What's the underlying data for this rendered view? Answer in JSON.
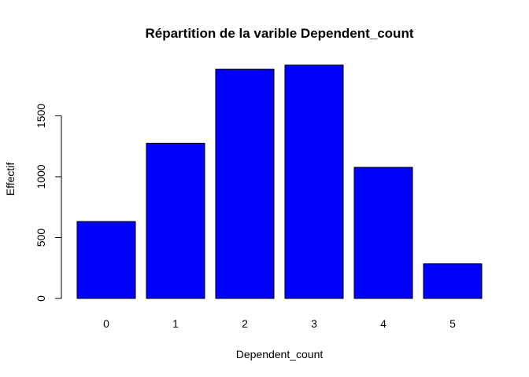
{
  "chart_data": {
    "type": "bar",
    "title": "Répartition de la varible Dependent_count",
    "xlabel": "Dependent_count",
    "ylabel": "Effectif",
    "categories": [
      "0",
      "1",
      "2",
      "3",
      "4",
      "5"
    ],
    "values": [
      632,
      1275,
      1883,
      1917,
      1077,
      285
    ],
    "ylim": [
      0,
      2000
    ],
    "yticks": [
      0,
      500,
      1000,
      1500
    ],
    "bar_color": "#0000ff",
    "bar_border_color": "#000000",
    "grid": false,
    "legend": "none"
  }
}
